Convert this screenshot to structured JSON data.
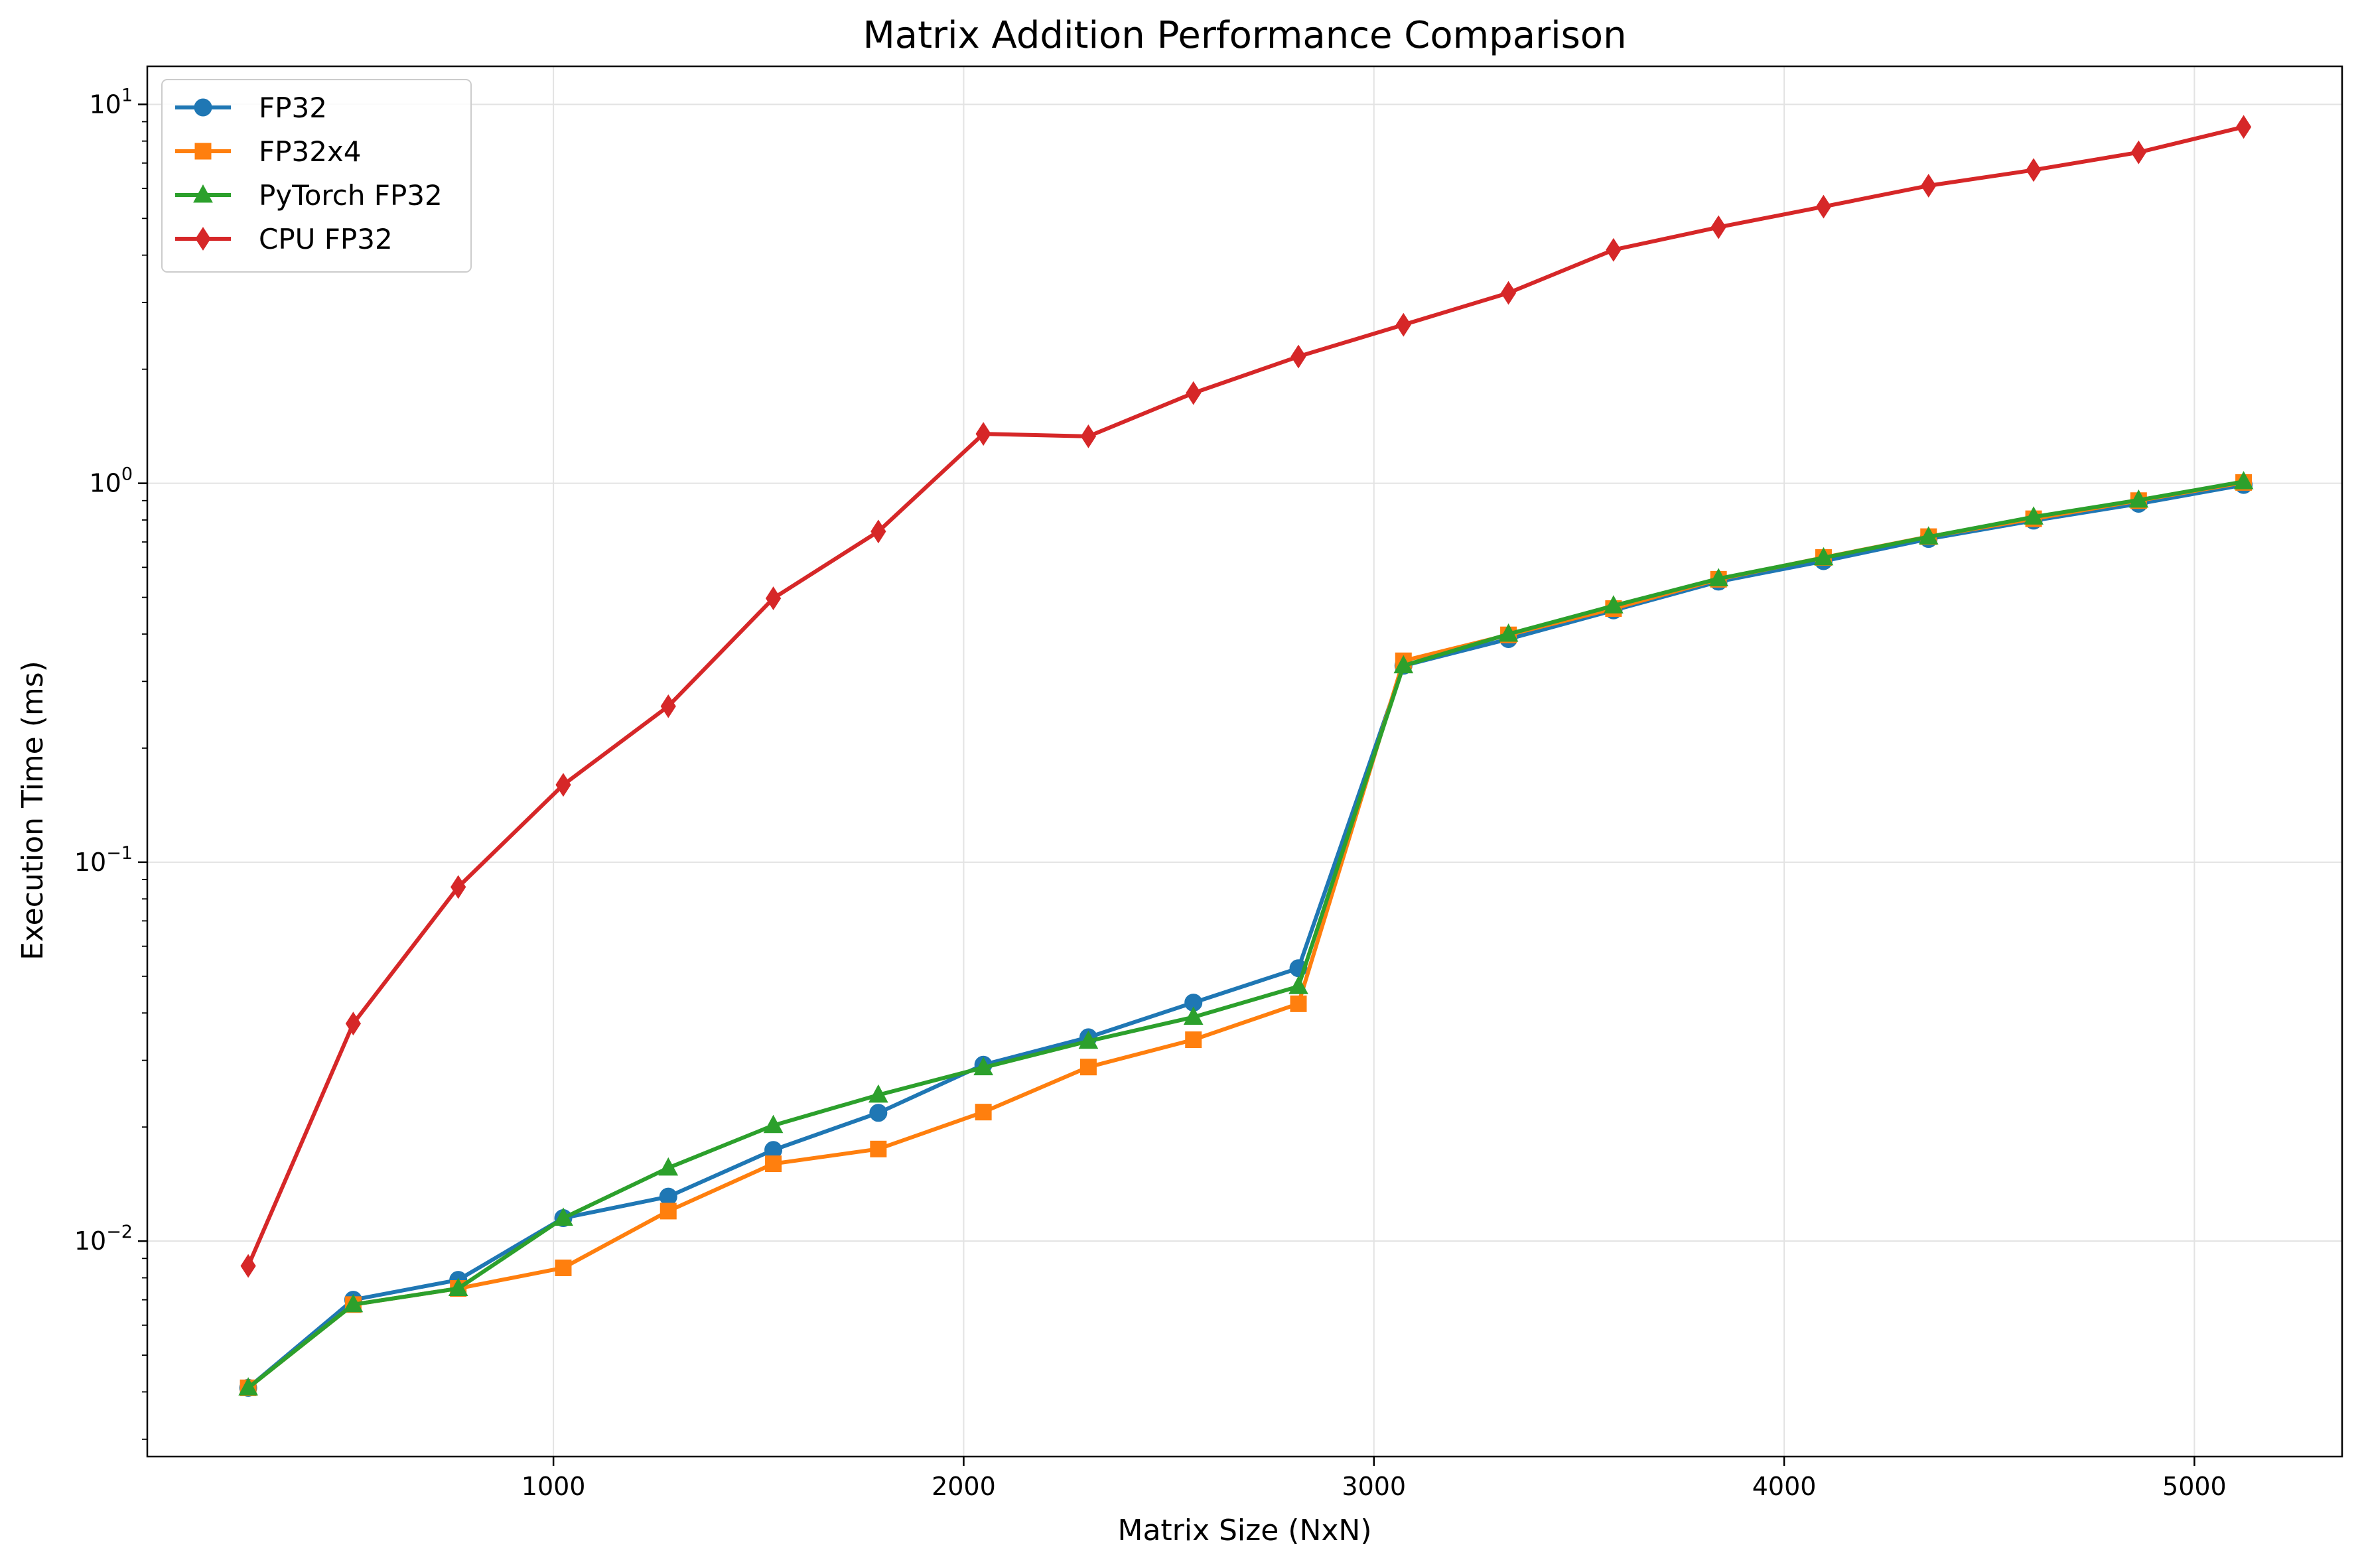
{
  "chart_data": {
    "type": "line",
    "title": "Matrix Addition Performance Comparison",
    "xlabel": "Matrix Size (NxN)",
    "ylabel": "Execution Time (ms)",
    "yscale": "log",
    "xlim": [
      10,
      5360
    ],
    "ylim": [
      0.0027,
      12.6
    ],
    "grid": true,
    "legend_position": "upper left",
    "x_ticks": [
      1000,
      2000,
      3000,
      4000,
      5000
    ],
    "y_ticks": [
      {
        "value": 0.01,
        "base": "10",
        "exp": "−2"
      },
      {
        "value": 0.1,
        "base": "10",
        "exp": "−1"
      },
      {
        "value": 1,
        "base": "10",
        "exp": "0"
      },
      {
        "value": 10,
        "base": "10",
        "exp": "1"
      }
    ],
    "x": [
      256,
      512,
      768,
      1024,
      1280,
      1536,
      1792,
      2048,
      2304,
      2560,
      2816,
      3072,
      3328,
      3584,
      3840,
      4096,
      4352,
      4608,
      4864,
      5120
    ],
    "series": [
      {
        "name": "FP32",
        "color": "#1f77b4",
        "marker": "circle",
        "values": [
          0.0041,
          0.007,
          0.0079,
          0.0115,
          0.0131,
          0.0174,
          0.0218,
          0.0292,
          0.0345,
          0.0426,
          0.0525,
          0.33,
          0.388,
          0.462,
          0.55,
          0.623,
          0.713,
          0.797,
          0.883,
          0.99
        ]
      },
      {
        "name": "FP32x4",
        "color": "#ff7f0e",
        "marker": "square",
        "values": [
          0.0041,
          0.0068,
          0.0075,
          0.0085,
          0.012,
          0.016,
          0.0175,
          0.0219,
          0.0288,
          0.034,
          0.0423,
          0.34,
          0.398,
          0.467,
          0.558,
          0.637,
          0.723,
          0.806,
          0.9,
          1.005
        ]
      },
      {
        "name": "PyTorch FP32",
        "color": "#2ca02c",
        "marker": "triangle",
        "values": [
          0.0041,
          0.0068,
          0.0075,
          0.0115,
          0.0156,
          0.0202,
          0.0243,
          0.0287,
          0.0337,
          0.039,
          0.047,
          0.33,
          0.4,
          0.475,
          0.56,
          0.636,
          0.722,
          0.815,
          0.903,
          1.01
        ]
      },
      {
        "name": "CPU FP32",
        "color": "#d62728",
        "marker": "diamond",
        "values": [
          0.0086,
          0.0375,
          0.086,
          0.16,
          0.258,
          0.497,
          0.746,
          1.35,
          1.33,
          1.73,
          2.16,
          2.62,
          3.18,
          4.13,
          4.74,
          5.37,
          6.1,
          6.71,
          7.47,
          8.72
        ]
      }
    ]
  }
}
